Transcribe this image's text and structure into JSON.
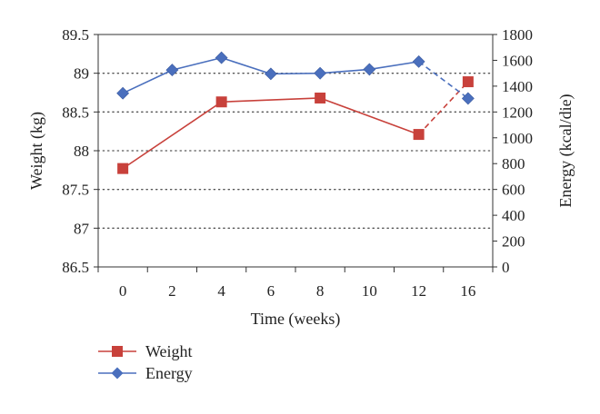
{
  "chart_data": {
    "type": "line",
    "x": [
      "0",
      "2",
      "4",
      "6",
      "8",
      "10",
      "12",
      "16"
    ],
    "xlabel": "Time (weeks)",
    "ylabel": "Weight (kg)",
    "ylabel_right": "Energy (kcal/die)",
    "ylim": [
      86.5,
      89.5
    ],
    "ylim_right": [
      0,
      1800
    ],
    "yticks": [
      "86.5",
      "87",
      "87.5",
      "88",
      "88.5",
      "89",
      "89.5"
    ],
    "yticks_right": [
      "0",
      "200",
      "400",
      "600",
      "800",
      "1000",
      "1200",
      "1400",
      "1600",
      "1800"
    ],
    "grid": "horizontal dotted",
    "legend_position": "bottom-left",
    "series": [
      {
        "name": "Weight",
        "axis": "left",
        "color": "#c8413b",
        "marker": "square",
        "points": [
          {
            "x": "0",
            "y": 87.77
          },
          {
            "x": "4",
            "y": 88.63
          },
          {
            "x": "8",
            "y": 88.68
          },
          {
            "x": "12",
            "y": 88.21
          },
          {
            "x": "16",
            "y": 88.89
          }
        ],
        "dashed_segment_from": "12"
      },
      {
        "name": "Energy",
        "axis": "right",
        "color": "#4a6fbd",
        "marker": "diamond",
        "points": [
          {
            "x": "0",
            "y": 1345
          },
          {
            "x": "2",
            "y": 1525
          },
          {
            "x": "4",
            "y": 1620
          },
          {
            "x": "6",
            "y": 1495
          },
          {
            "x": "8",
            "y": 1500
          },
          {
            "x": "10",
            "y": 1530
          },
          {
            "x": "12",
            "y": 1590
          },
          {
            "x": "16",
            "y": 1305
          }
        ],
        "dashed_segment_from": "12"
      }
    ]
  }
}
